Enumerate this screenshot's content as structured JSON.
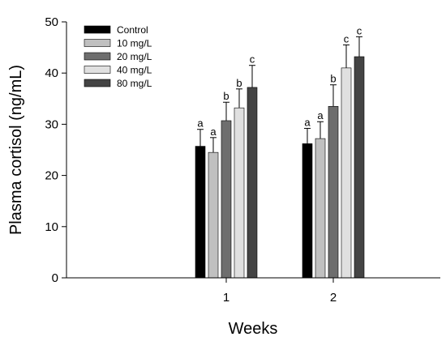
{
  "chart_data": {
    "type": "bar",
    "title": "",
    "xlabel": "Weeks",
    "ylabel": "Plasma cortisol (ng/mL)",
    "ylim": [
      0,
      50
    ],
    "yticks": [
      "0",
      "10",
      "20",
      "30",
      "40",
      "50"
    ],
    "categories": [
      "1",
      "2"
    ],
    "legend_position": "top-left",
    "grid": false,
    "series": [
      {
        "name": "Control",
        "color": "#000000",
        "values": [
          25.7,
          26.2
        ],
        "errors": [
          3.3,
          3.0
        ],
        "labels": [
          "a",
          "a"
        ]
      },
      {
        "name": "10 mg/L",
        "color": "#c0c0c0",
        "values": [
          24.5,
          27.2
        ],
        "errors": [
          2.9,
          3.3
        ],
        "labels": [
          "a",
          "a"
        ]
      },
      {
        "name": "20 mg/L",
        "color": "#6e6e6e",
        "values": [
          30.7,
          33.5
        ],
        "errors": [
          3.6,
          4.2
        ],
        "labels": [
          "b",
          "b"
        ]
      },
      {
        "name": "40 mg/L",
        "color": "#e0e0e0",
        "values": [
          33.2,
          41.0
        ],
        "errors": [
          3.7,
          4.5
        ],
        "labels": [
          "b",
          "c"
        ]
      },
      {
        "name": "80 mg/L",
        "color": "#444444",
        "values": [
          37.2,
          43.2
        ],
        "errors": [
          4.3,
          3.9
        ],
        "labels": [
          "c",
          "c"
        ]
      }
    ]
  }
}
